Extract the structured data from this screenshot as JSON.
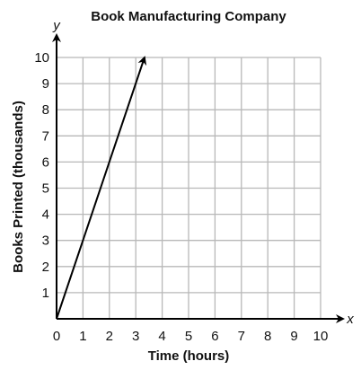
{
  "chart_data": {
    "type": "line",
    "title": "Book Manufacturing Company",
    "xlabel": "Time (hours)",
    "ylabel": "Books Printed (thousands)",
    "x_axis_letter": "x",
    "y_axis_letter": "y",
    "xlim": [
      0,
      10
    ],
    "ylim": [
      0,
      10
    ],
    "x_ticks": [
      "0",
      "1",
      "2",
      "3",
      "4",
      "5",
      "6",
      "7",
      "8",
      "9",
      "10"
    ],
    "y_ticks": [
      "1",
      "2",
      "3",
      "4",
      "5",
      "6",
      "7",
      "8",
      "9",
      "10"
    ],
    "grid": true,
    "series": [
      {
        "x": [
          0,
          3.33
        ],
        "y": [
          0,
          10
        ],
        "ends_with_arrow": true
      }
    ],
    "colors": {
      "line": "#000000",
      "grid": "#b8b8b8",
      "background": "#ffffff"
    }
  }
}
